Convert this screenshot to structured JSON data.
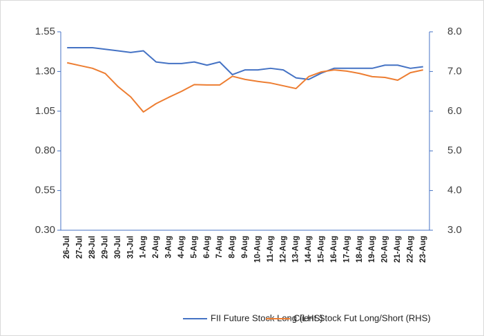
{
  "chart_data": {
    "type": "line",
    "categories": [
      "26-Jul",
      "27-Jul",
      "28-Jul",
      "29-Jul",
      "30-Jul",
      "31-Jul",
      "1-Aug",
      "2-Aug",
      "3-Aug",
      "4-Aug",
      "5-Aug",
      "6-Aug",
      "7-Aug",
      "8-Aug",
      "9-Aug",
      "10-Aug",
      "11-Aug",
      "12-Aug",
      "13-Aug",
      "14-Aug",
      "15-Aug",
      "16-Aug",
      "17-Aug",
      "18-Aug",
      "19-Aug",
      "20-Aug",
      "21-Aug",
      "22-Aug",
      "23-Aug"
    ],
    "series": [
      {
        "name": "FII Future Stock Long (LHS)",
        "color": "#4472c4",
        "values": [
          1.45,
          1.45,
          1.45,
          1.44,
          1.43,
          1.42,
          1.43,
          1.36,
          1.35,
          1.35,
          1.36,
          1.34,
          1.36,
          1.28,
          1.31,
          1.31,
          1.32,
          1.31,
          1.26,
          1.25,
          1.29,
          1.32,
          1.32,
          1.32,
          1.32,
          1.34,
          1.34,
          1.32,
          1.33
        ]
      },
      {
        "name": "Client Stock Fut Long/Short (RHS)",
        "color": "#ed7d31",
        "axis": "y2",
        "values": [
          7.22,
          7.15,
          7.08,
          6.95,
          6.62,
          6.36,
          5.98,
          6.19,
          6.35,
          6.5,
          6.67,
          6.66,
          6.66,
          6.88,
          6.8,
          6.75,
          6.71,
          6.64,
          6.57,
          6.87,
          6.99,
          7.04,
          7.01,
          6.95,
          6.87,
          6.85,
          6.78,
          6.97,
          7.04
        ]
      }
    ],
    "ylim": [
      0.3,
      1.55
    ],
    "yticks": [
      {
        "value": 0.3,
        "label": "0.30"
      },
      0.55,
      {
        "value": 0.8,
        "label": "0.80"
      },
      1.05,
      {
        "value": 1.3,
        "label": "1.30"
      },
      1.55
    ],
    "y2lim": [
      3,
      8
    ],
    "y2ticks": [
      {
        "value": 3,
        "label": "3.0"
      },
      {
        "value": 4,
        "label": "4.0"
      },
      {
        "value": 5,
        "label": "5.0"
      },
      {
        "value": 6,
        "label": "6.0"
      },
      {
        "value": 7,
        "label": "7.0"
      },
      {
        "value": 8,
        "label": "8.0"
      }
    ],
    "axis_color": "#4472c4"
  }
}
